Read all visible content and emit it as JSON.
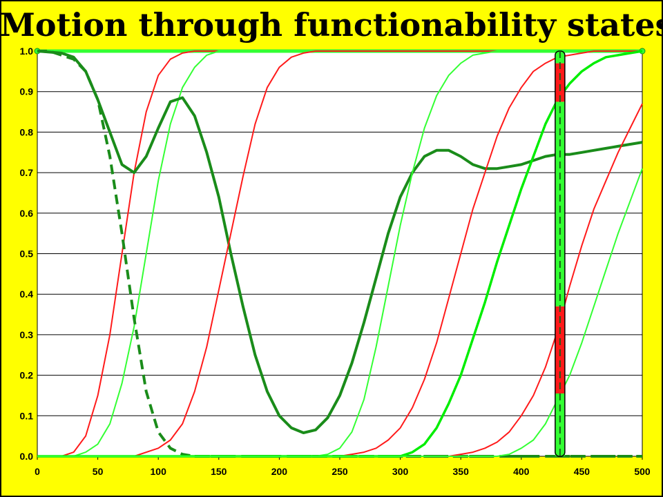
{
  "chart_data": {
    "type": "line",
    "title": "Motion through functionability states",
    "xlabel": "",
    "ylabel": "",
    "xlim": [
      0,
      500
    ],
    "ylim": [
      0.0,
      1.0
    ],
    "x_ticks": [
      "0",
      "50",
      "100",
      "150",
      "200",
      "250",
      "300",
      "350",
      "400",
      "450",
      "500"
    ],
    "y_ticks": [
      "0.0",
      "0.1",
      "0.2",
      "0.3",
      "0.4",
      "0.5",
      "0.6",
      "0.7",
      "0.8",
      "0.9",
      "1.0"
    ],
    "grid": "horizontal",
    "legend": "none",
    "colors": {
      "background": "#ffff00",
      "plot_area": "#ffffff",
      "red": "#ff1a1a",
      "light_green": "#33ff33",
      "bright_green": "#00ee00",
      "dark_green": "#1a8c1a"
    },
    "series": [
      {
        "color": "red",
        "style": "thin",
        "x": [
          0,
          20,
          30,
          40,
          50,
          60,
          70,
          80,
          90,
          100,
          110,
          120,
          130,
          500
        ],
        "y": [
          0.0,
          0.0,
          0.01,
          0.05,
          0.15,
          0.3,
          0.5,
          0.7,
          0.85,
          0.94,
          0.98,
          0.995,
          1.0,
          1.0
        ]
      },
      {
        "color": "light_green",
        "style": "thin",
        "x": [
          0,
          30,
          40,
          50,
          60,
          70,
          80,
          90,
          100,
          110,
          120,
          130,
          140,
          150,
          500
        ],
        "y": [
          0.0,
          0.0,
          0.01,
          0.03,
          0.08,
          0.18,
          0.32,
          0.5,
          0.68,
          0.82,
          0.91,
          0.96,
          0.99,
          1.0,
          1.0
        ]
      },
      {
        "color": "dark_green",
        "style": "dashed",
        "x": [
          0,
          10,
          20,
          30,
          40,
          50,
          60,
          70,
          80,
          90,
          100,
          110,
          120,
          130,
          500
        ],
        "y": [
          1.0,
          1.0,
          0.99,
          0.98,
          0.95,
          0.88,
          0.74,
          0.55,
          0.34,
          0.16,
          0.06,
          0.02,
          0.005,
          0.0,
          0.0
        ]
      },
      {
        "color": "dark_green",
        "style": "thick",
        "x": [
          0,
          20,
          30,
          40,
          50,
          60,
          70,
          80,
          90,
          100,
          110,
          120,
          130,
          140,
          150,
          160,
          170,
          180,
          190,
          200,
          210,
          220,
          230,
          240,
          250,
          260,
          270,
          280,
          290,
          300,
          310,
          320,
          330,
          340,
          350,
          360,
          370,
          380,
          390,
          400,
          410,
          420,
          430,
          440,
          450,
          460,
          470,
          480,
          490,
          500
        ],
        "y": [
          1.0,
          0.995,
          0.985,
          0.95,
          0.88,
          0.8,
          0.72,
          0.7,
          0.74,
          0.81,
          0.875,
          0.885,
          0.84,
          0.75,
          0.64,
          0.5,
          0.37,
          0.25,
          0.16,
          0.1,
          0.07,
          0.058,
          0.065,
          0.095,
          0.15,
          0.23,
          0.33,
          0.44,
          0.55,
          0.64,
          0.7,
          0.74,
          0.755,
          0.755,
          0.74,
          0.72,
          0.71,
          0.71,
          0.715,
          0.72,
          0.73,
          0.74,
          0.745,
          0.745,
          0.75,
          0.755,
          0.76,
          0.765,
          0.77,
          0.775
        ]
      },
      {
        "color": "red",
        "style": "thin",
        "x": [
          0,
          80,
          100,
          110,
          120,
          130,
          140,
          150,
          160,
          170,
          180,
          190,
          200,
          210,
          220,
          230,
          240,
          250,
          500
        ],
        "y": [
          0.0,
          0.0,
          0.02,
          0.04,
          0.08,
          0.16,
          0.27,
          0.41,
          0.55,
          0.69,
          0.82,
          0.91,
          0.96,
          0.985,
          0.995,
          1.0,
          1.0,
          1.0,
          1.0
        ]
      },
      {
        "color": "light_green",
        "style": "thin",
        "x": [
          0,
          230,
          240,
          250,
          260,
          270,
          280,
          290,
          300,
          310,
          320,
          330,
          340,
          350,
          360,
          370,
          380,
          390,
          400,
          500
        ],
        "y": [
          0.0,
          0.0,
          0.005,
          0.02,
          0.06,
          0.14,
          0.27,
          0.42,
          0.57,
          0.7,
          0.81,
          0.89,
          0.94,
          0.97,
          0.99,
          0.995,
          1.0,
          1.0,
          1.0,
          1.0
        ]
      },
      {
        "color": "red",
        "style": "thin",
        "x": [
          0,
          250,
          260,
          270,
          280,
          290,
          300,
          310,
          320,
          330,
          340,
          350,
          360,
          370,
          380,
          390,
          400,
          410,
          420,
          430,
          440,
          450,
          460,
          470,
          480,
          500
        ],
        "y": [
          0.0,
          0.0,
          0.005,
          0.01,
          0.02,
          0.04,
          0.07,
          0.12,
          0.19,
          0.28,
          0.39,
          0.5,
          0.61,
          0.7,
          0.79,
          0.86,
          0.91,
          0.95,
          0.97,
          0.985,
          0.99,
          0.995,
          1.0,
          1.0,
          1.0,
          1.0
        ]
      },
      {
        "color": "bright_green",
        "style": "medium",
        "x": [
          0,
          300,
          310,
          320,
          330,
          340,
          350,
          360,
          370,
          380,
          390,
          400,
          410,
          420,
          430,
          440,
          450,
          460,
          470,
          480,
          490,
          500
        ],
        "y": [
          0.0,
          0.0,
          0.01,
          0.03,
          0.07,
          0.13,
          0.2,
          0.29,
          0.38,
          0.48,
          0.57,
          0.66,
          0.74,
          0.82,
          0.88,
          0.92,
          0.95,
          0.97,
          0.985,
          0.99,
          0.995,
          1.0
        ]
      },
      {
        "color": "red",
        "style": "thin",
        "x": [
          0,
          340,
          350,
          360,
          370,
          380,
          390,
          400,
          410,
          420,
          430,
          440,
          450,
          460,
          470,
          480,
          490,
          500
        ],
        "y": [
          0.0,
          0.0,
          0.005,
          0.01,
          0.02,
          0.035,
          0.06,
          0.1,
          0.15,
          0.22,
          0.31,
          0.42,
          0.52,
          0.61,
          0.68,
          0.75,
          0.81,
          0.87
        ]
      },
      {
        "color": "light_green",
        "style": "thin",
        "x": [
          0,
          380,
          390,
          400,
          410,
          420,
          430,
          440,
          450,
          460,
          470,
          480,
          490,
          500
        ],
        "y": [
          0.0,
          0.0,
          0.005,
          0.02,
          0.04,
          0.08,
          0.14,
          0.2,
          0.28,
          0.37,
          0.46,
          0.55,
          0.63,
          0.71
        ]
      }
    ],
    "baseline_dashed": {
      "color": "dark_green",
      "x": [
        130,
        500
      ],
      "y": [
        0.0,
        0.0
      ]
    },
    "top_line": {
      "color": "light_green",
      "x": [
        0,
        500
      ],
      "y": [
        1.0,
        1.0
      ]
    },
    "state_bar": {
      "x": 432,
      "segments": [
        {
          "from": 0.0,
          "to": 0.155,
          "color": "light_green"
        },
        {
          "from": 0.155,
          "to": 0.37,
          "color": "red"
        },
        {
          "from": 0.37,
          "to": 0.875,
          "color": "light_green"
        },
        {
          "from": 0.875,
          "to": 0.97,
          "color": "red"
        },
        {
          "from": 0.97,
          "to": 1.0,
          "color": "light_green"
        }
      ]
    }
  }
}
